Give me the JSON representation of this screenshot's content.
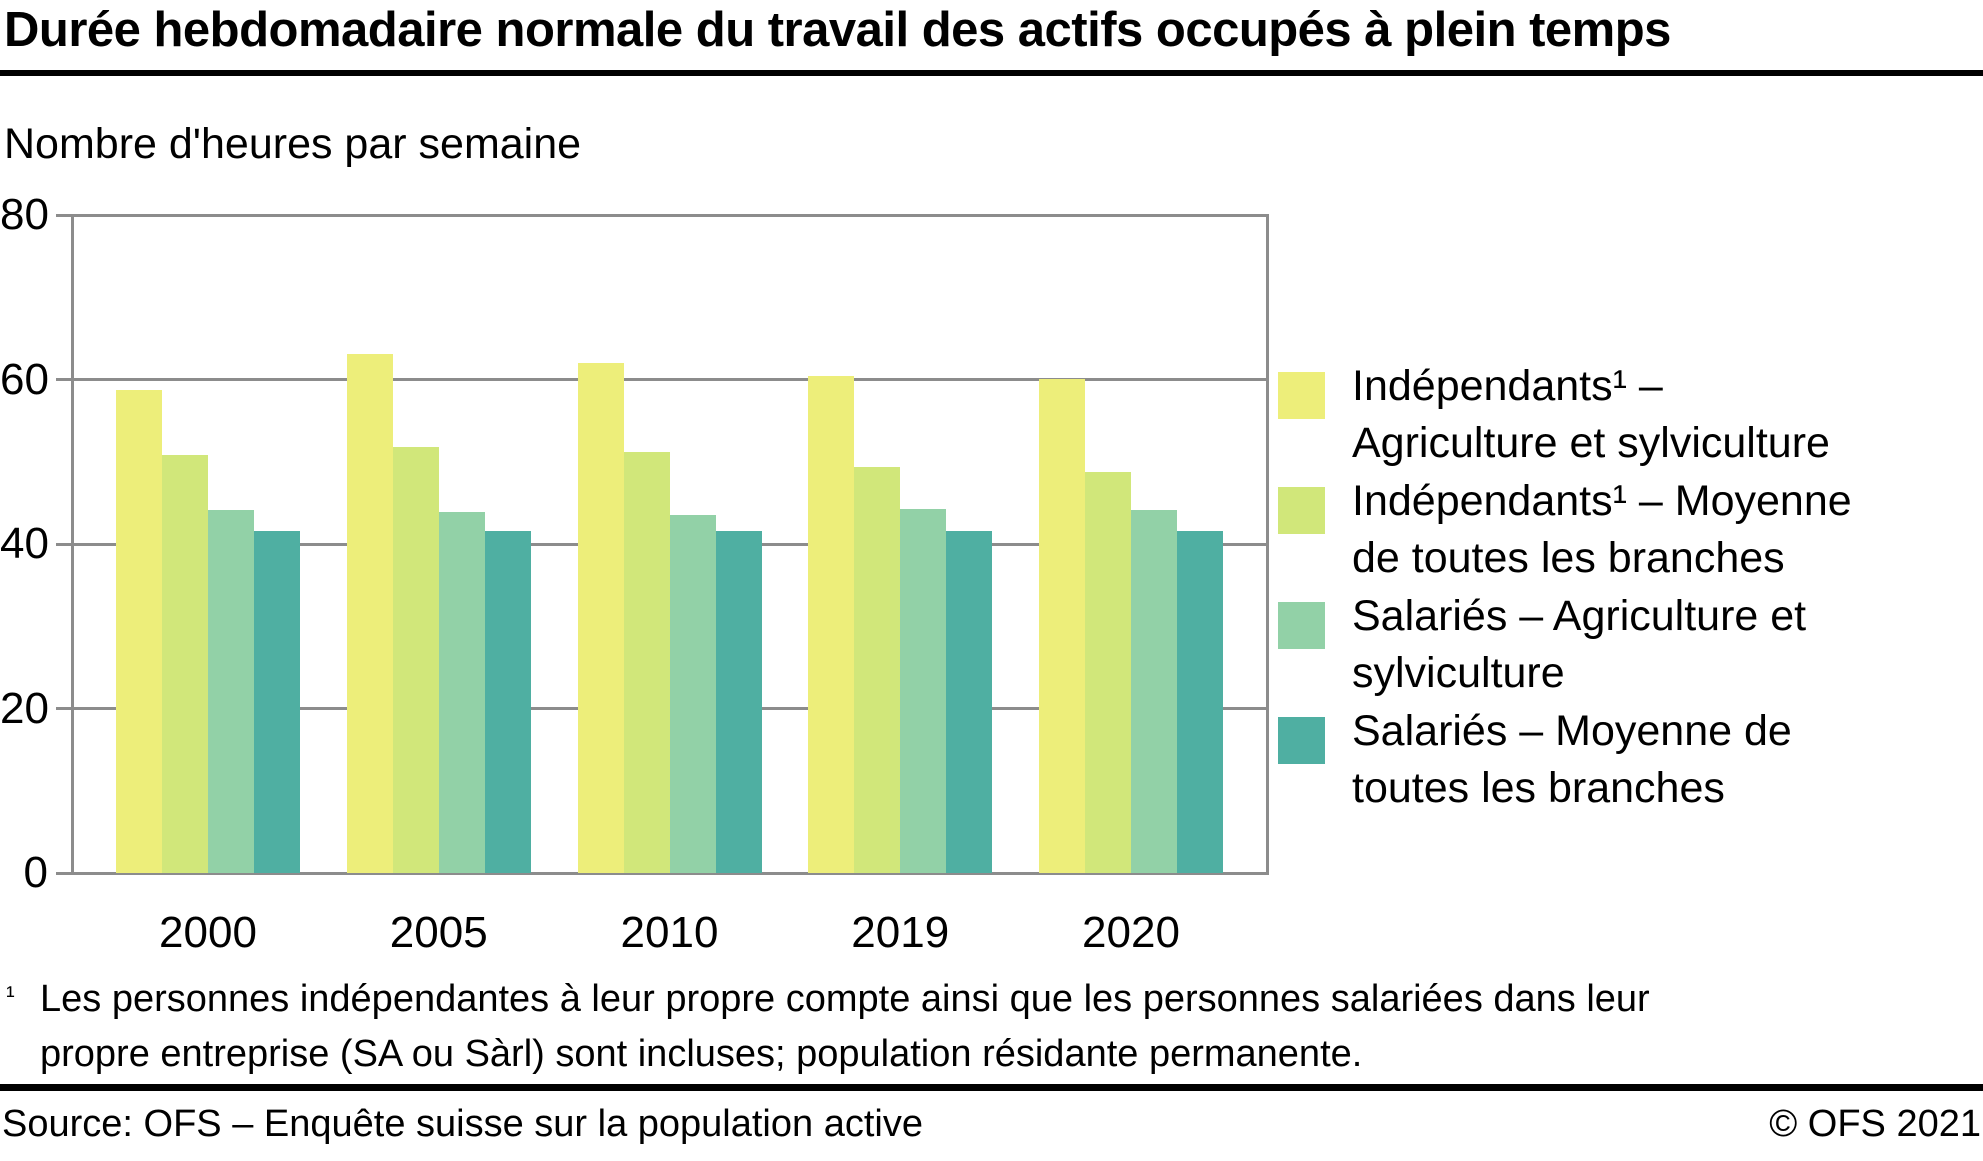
{
  "page": {
    "title": "Durée hebdomadaire normale du travail des actifs occupés à plein temps",
    "subtitle": "Nombre d'heures par semaine",
    "footnote_marker": "¹",
    "footnote_line1": "Les personnes indépendantes à leur propre compte ainsi que les personnes salariées dans leur",
    "footnote_line2": "propre entreprise (SA ou Sàrl) sont incluses; population résidante permanente.",
    "source": "Source: OFS – Enquête suisse sur la population active",
    "copyright": "© OFS 2021"
  },
  "colors": {
    "series1": "#EDEE7A",
    "series2": "#D1E77A",
    "series3": "#92D1A7",
    "series4": "#4FAFA2",
    "axis_gray": "#8C8C8C",
    "rule_black": "#000000"
  },
  "legend": {
    "items": [
      {
        "line1": "Indépendants¹ –",
        "line2": "Agriculture et sylviculture",
        "color": "#EDEE7A"
      },
      {
        "line1": "Indépendants¹ – Moyenne",
        "line2": "de toutes les branches",
        "color": "#D1E77A"
      },
      {
        "line1": "Salariés – Agriculture et",
        "line2": "sylviculture",
        "color": "#92D1A7"
      },
      {
        "line1": "Salariés – Moyenne de",
        "line2": "toutes les branches",
        "color": "#4FAFA2"
      }
    ]
  },
  "chart_data": {
    "type": "bar",
    "title": "Durée hebdomadaire normale du travail des actifs occupés à plein temps",
    "ylabel": "Nombre d'heures par semaine",
    "categories": [
      "2000",
      "2005",
      "2010",
      "2019",
      "2020"
    ],
    "series": [
      {
        "name": "Indépendants¹ – Agriculture et sylviculture",
        "color": "#EDEE7A",
        "values": [
          58.7,
          63.1,
          62.0,
          60.4,
          60.1
        ]
      },
      {
        "name": "Indépendants¹ – Moyenne de toutes les branches",
        "color": "#D1E77A",
        "values": [
          50.8,
          51.8,
          51.2,
          49.4,
          48.8
        ]
      },
      {
        "name": "Salariés – Agriculture et sylviculture",
        "color": "#92D1A7",
        "values": [
          44.1,
          43.9,
          43.5,
          44.3,
          44.1
        ]
      },
      {
        "name": "Salariés – Moyenne de toutes les branches",
        "color": "#4FAFA2",
        "values": [
          41.6,
          41.6,
          41.6,
          41.6,
          41.6
        ]
      }
    ],
    "ylim": [
      0,
      80
    ],
    "yticks": [
      0,
      20,
      40,
      60,
      80
    ],
    "grid": true,
    "legend_position": "right"
  }
}
